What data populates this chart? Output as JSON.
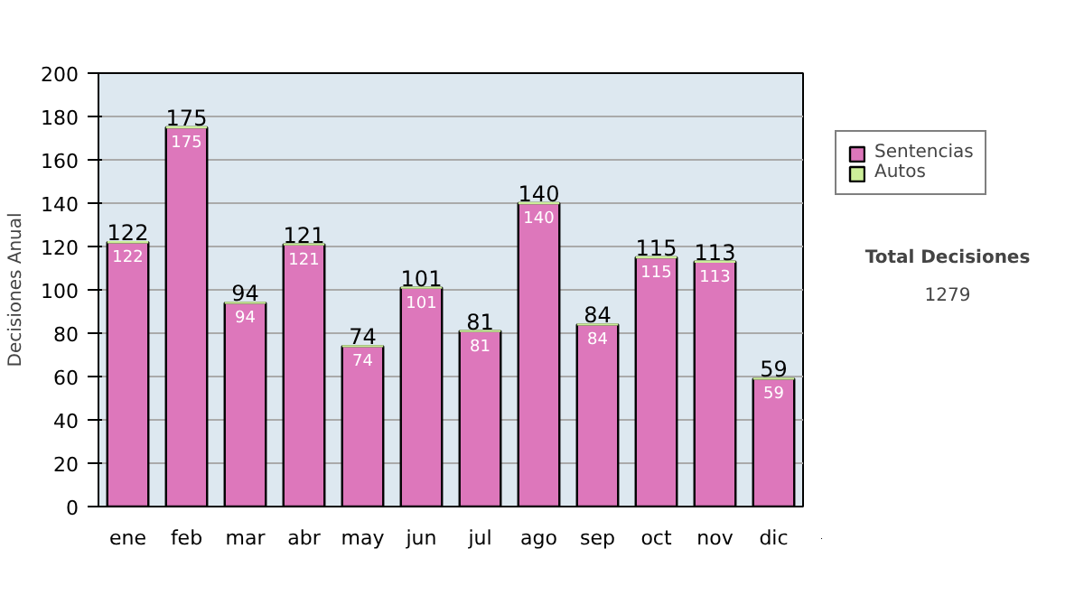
{
  "chart_data": {
    "type": "bar",
    "ylabel": "Decisiones Anual",
    "categories": [
      "ene",
      "feb",
      "mar",
      "abr",
      "may",
      "jun",
      "jul",
      "ago",
      "sep",
      "oct",
      "nov",
      "dic"
    ],
    "stacked": true,
    "series": [
      {
        "name": "Sentencias",
        "color": "#dd77bb",
        "values": [
          122,
          175,
          94,
          121,
          74,
          101,
          81,
          140,
          84,
          115,
          113,
          59
        ],
        "value_labels": [
          "122",
          "175",
          "94",
          "121",
          "74",
          "101",
          "81",
          "140",
          "84",
          "115",
          "113",
          "59"
        ]
      },
      {
        "name": "Autos",
        "color": "#ccee99",
        "values": [
          0,
          0,
          0,
          0,
          0,
          0,
          0,
          0,
          0,
          0,
          0,
          0
        ]
      }
    ],
    "totals": [
      "122",
      "175",
      "94",
      "121",
      "74",
      "101",
      "81",
      "140",
      "84",
      "115",
      "113",
      "59"
    ],
    "ylim": [
      0,
      200
    ],
    "yticks": [
      0,
      20,
      40,
      60,
      80,
      100,
      120,
      140,
      160,
      180,
      200
    ],
    "grid": "y",
    "legend": "right",
    "annotations": [
      "Total Decisiones",
      "1279"
    ]
  }
}
